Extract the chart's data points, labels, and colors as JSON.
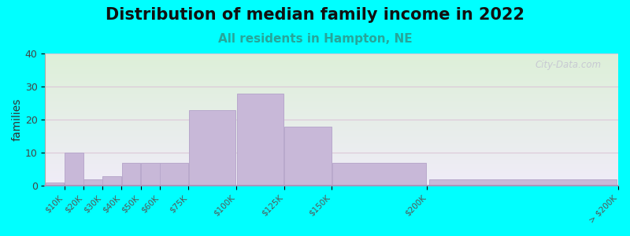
{
  "title": "Distribution of median family income in 2022",
  "subtitle": "All residents in Hampton, NE",
  "ylabel": "families",
  "background_color": "#00FFFF",
  "bar_color": "#c8b8d8",
  "bar_edge_color": "#b8a8cc",
  "bin_edges": [
    0,
    10,
    20,
    30,
    40,
    50,
    60,
    75,
    100,
    125,
    150,
    200,
    300
  ],
  "values": [
    1,
    10,
    2,
    3,
    7,
    7,
    7,
    23,
    28,
    18,
    7,
    2
  ],
  "tick_labels": [
    "$10K",
    "$20K",
    "$30K",
    "$40K",
    "$50K",
    "$60K",
    "$75K",
    "$100K",
    "$125K",
    "$150K",
    "$200K",
    "> $200K"
  ],
  "ylim": [
    0,
    40
  ],
  "yticks": [
    0,
    10,
    20,
    30,
    40
  ],
  "title_fontsize": 15,
  "subtitle_fontsize": 11,
  "subtitle_color": "#26a69a",
  "ylabel_fontsize": 10,
  "watermark": "City-Data.com",
  "grid_color": "#ddc8d8",
  "baseline_color": "#b090b8"
}
